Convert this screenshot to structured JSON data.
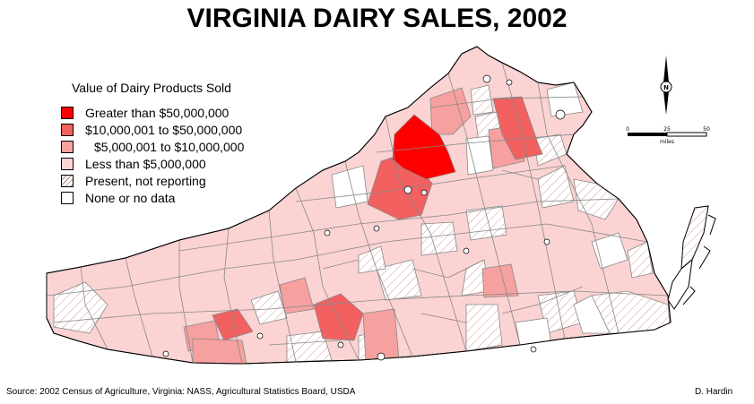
{
  "title": "VIRGINIA DAIRY SALES, 2002",
  "legend": {
    "title": "Value of Dairy Products Sold",
    "items": [
      {
        "label": "Greater than $50,000,000",
        "color": "#ff0000",
        "pattern": "solid"
      },
      {
        "label": "$10,000,001 to $50,000,000",
        "color": "#f26060",
        "pattern": "solid"
      },
      {
        "label": "$5,000,001 to $10,000,000",
        "color": "#f7a0a0",
        "pattern": "solid"
      },
      {
        "label": "Less than $5,000,000",
        "color": "#fbd3d3",
        "pattern": "solid"
      },
      {
        "label": "Present, not reporting",
        "color": "#ffffff",
        "pattern": "hatch"
      },
      {
        "label": "None or no data",
        "color": "#ffffff",
        "pattern": "solid"
      }
    ]
  },
  "north_arrow": {
    "label": "N"
  },
  "scale_bar": {
    "ticks": [
      "0",
      "25",
      "50"
    ],
    "unit": "miles"
  },
  "source": "Source: 2002 Census of Agriculture, Virginia: NASS, Agricultural Statistics Board, USDA",
  "author": "D. Hardin",
  "colors": {
    "top": "#ff0000",
    "high": "#f26060",
    "mid": "#f7a0a0",
    "low": "#fbd3d3",
    "border": "#888888",
    "outline": "#000000",
    "hatch": "#c89090"
  }
}
